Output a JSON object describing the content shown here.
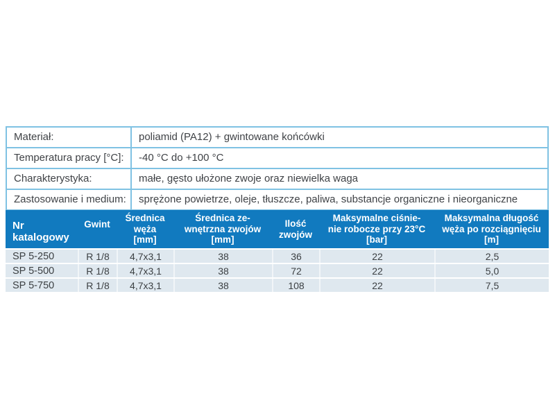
{
  "colors": {
    "header_blue": "#117abf",
    "row_bg": "#dfe8ef",
    "table_border": "#7fc2e3",
    "text_dark": "#3f4246",
    "header_text": "#ffffff"
  },
  "info_table": {
    "rows": [
      {
        "label": "Materiał:",
        "value": "poliamid (PA12) + gwintowane końcówki"
      },
      {
        "label": "Temperatura pracy [°C]:",
        "value": "-40 °C do +100 °C"
      },
      {
        "label": "Charakterystyka:",
        "value": "małe, gęsto ułożone zwoje oraz niewielka waga"
      },
      {
        "label": "Zastosowanie i medium:",
        "value": "sprężone powietrze, oleje, tłuszcze, paliwa, substancje organiczne i nieorganiczne"
      }
    ]
  },
  "spec_table": {
    "headers": [
      "Nr katalogowy",
      "Gwint",
      "Średnica\nwęża\n[mm]",
      "Średnica ze-\nwnętrzna zwojów\n[mm]",
      "Ilość\nzwojów",
      "Maksymalne ciśnie-\nnie robocze przy 23°C\n[bar]",
      "Maksymalna długość\nwęża po rozciągnięciu\n[m]"
    ],
    "rows": [
      [
        "SP 5-250",
        "R 1/8",
        "4,7x3,1",
        "38",
        "36",
        "22",
        "2,5"
      ],
      [
        "SP 5-500",
        "R 1/8",
        "4,7x3,1",
        "38",
        "72",
        "22",
        "5,0"
      ],
      [
        "SP 5-750",
        "R 1/8",
        "4,7x3,1",
        "38",
        "108",
        "22",
        "7,5"
      ]
    ]
  }
}
